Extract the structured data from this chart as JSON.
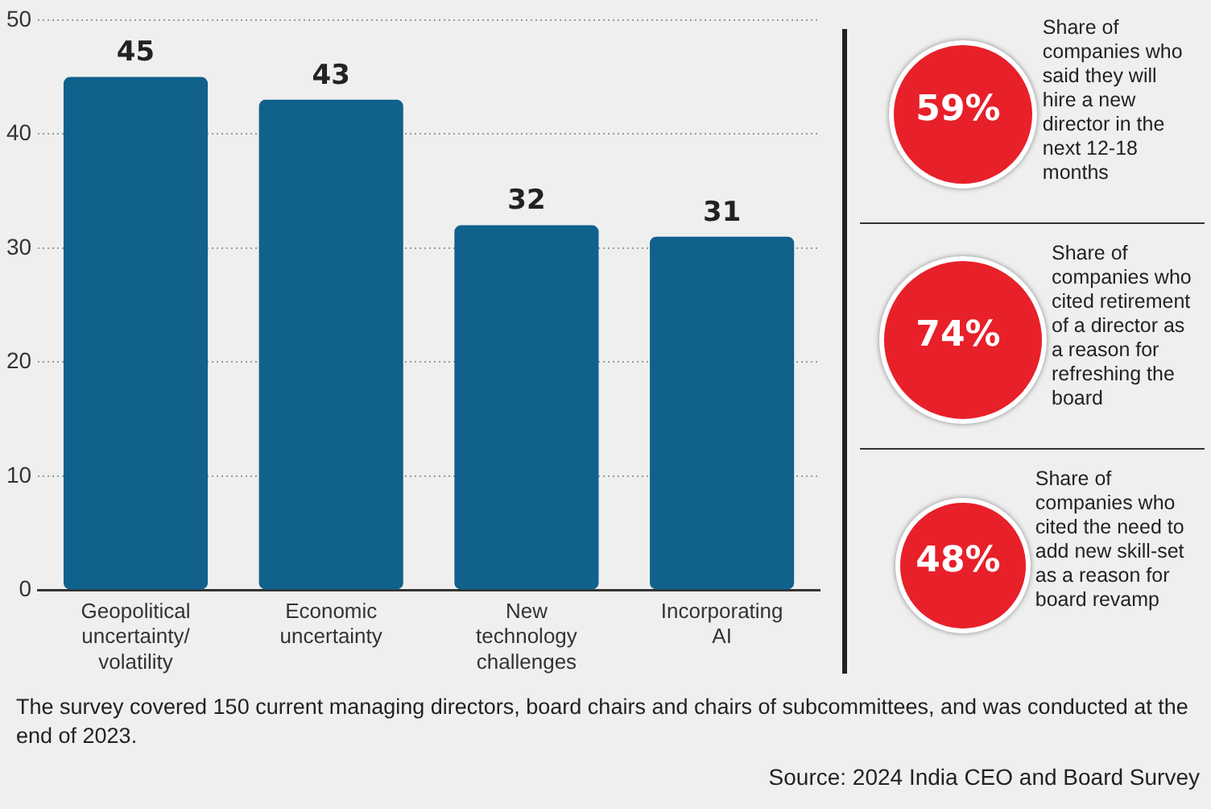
{
  "chart_data": [
    {
      "type": "bar",
      "categories": [
        "Geopolitical uncertainty/ volatility",
        "Economic uncertainty",
        "New technology challenges",
        "Incorporating AI"
      ],
      "values": [
        45,
        43,
        32,
        31
      ],
      "color": "#10618c",
      "ylim": [
        0,
        50
      ],
      "yticks": [
        0,
        10,
        20,
        30,
        40,
        50
      ],
      "grid": "y",
      "data_labels": true,
      "annotations": [
        "The survey covered 150 current managing directors, board chairs and chairs of subcommittees, and was conducted at the end of 2023.",
        "Source: 2024 India CEO and Board Survey"
      ]
    },
    {
      "type": "other",
      "categories": [
        "Share of companies who said they will hire a new director in the next 12-18 months",
        "Share of companies who cited retirement of a director as a reason for refreshing the board",
        "Share of companies who cited the need to add new skill-set as a reason for board revamp"
      ],
      "values": [
        59,
        74,
        48
      ],
      "value_labels": [
        "59%",
        "74%",
        "48%"
      ],
      "color": "#e8202a"
    }
  ]
}
